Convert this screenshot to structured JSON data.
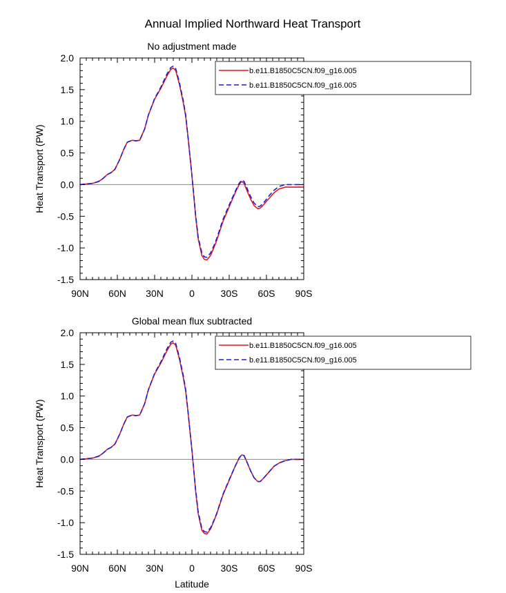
{
  "figure_title": "Annual Implied Northward Heat Transport",
  "chart_data": [
    {
      "type": "line",
      "title": "No adjustment made",
      "xlabel": "",
      "ylabel": "Heat Transport (PW)",
      "xlim": [
        -90,
        90
      ],
      "ylim": [
        -1.5,
        2.0
      ],
      "x_ticks": [
        -90,
        -60,
        -30,
        0,
        30,
        60,
        90
      ],
      "x_tick_labels": [
        "90N",
        "60N",
        "30N",
        "0",
        "30S",
        "60S",
        "90S"
      ],
      "y_ticks": [
        -1.5,
        -1.0,
        -0.5,
        0.0,
        0.5,
        1.0,
        1.5,
        2.0
      ],
      "y_tick_labels": [
        "-1.5",
        "-1.0",
        "-0.5",
        "0.0",
        "0.5",
        "1.0",
        "1.5",
        "2.0"
      ],
      "zero_line": true,
      "legend_position": "top-right",
      "series": [
        {
          "name": "b.e11.B1850C5CN.f09_g16.005",
          "color": "#e8151b",
          "style": "solid",
          "x": [
            -90,
            -80,
            -75,
            -72,
            -68,
            -65,
            -62,
            -58,
            -55,
            -52,
            -48,
            -45,
            -42,
            -38,
            -35,
            -30,
            -25,
            -20,
            -17,
            -15,
            -13,
            -10,
            -7,
            -5,
            -3,
            0,
            3,
            5,
            8,
            10,
            12,
            15,
            18,
            20,
            25,
            30,
            35,
            38,
            40,
            42,
            44,
            47,
            50,
            53,
            55,
            58,
            62,
            66,
            70,
            75,
            80,
            85,
            90
          ],
          "y": [
            0,
            0.02,
            0.05,
            0.09,
            0.16,
            0.19,
            0.24,
            0.4,
            0.55,
            0.67,
            0.7,
            0.69,
            0.7,
            0.88,
            1.1,
            1.35,
            1.52,
            1.72,
            1.82,
            1.84,
            1.8,
            1.58,
            1.3,
            1.08,
            0.72,
            0.15,
            -0.5,
            -0.85,
            -1.12,
            -1.18,
            -1.19,
            -1.12,
            -0.98,
            -0.88,
            -0.58,
            -0.35,
            -0.12,
            0,
            0.05,
            0.02,
            -0.08,
            -0.22,
            -0.33,
            -0.38,
            -0.37,
            -0.31,
            -0.22,
            -0.13,
            -0.07,
            -0.04,
            -0.04,
            -0.04,
            -0.04
          ]
        },
        {
          "name": "b.e11.B1850C5CN.f09_g16.005",
          "color": "#1a1ae0",
          "style": "dashed",
          "x": [
            -90,
            -80,
            -75,
            -72,
            -68,
            -65,
            -62,
            -58,
            -55,
            -52,
            -48,
            -45,
            -42,
            -38,
            -35,
            -30,
            -25,
            -20,
            -17,
            -15,
            -13,
            -10,
            -7,
            -5,
            -3,
            0,
            3,
            5,
            8,
            10,
            12,
            15,
            18,
            20,
            25,
            30,
            35,
            38,
            40,
            42,
            44,
            47,
            50,
            53,
            55,
            58,
            62,
            66,
            70,
            75,
            80,
            85,
            90
          ],
          "y": [
            0,
            0.02,
            0.05,
            0.09,
            0.16,
            0.19,
            0.24,
            0.4,
            0.55,
            0.67,
            0.7,
            0.69,
            0.7,
            0.88,
            1.1,
            1.36,
            1.54,
            1.75,
            1.85,
            1.87,
            1.83,
            1.61,
            1.33,
            1.1,
            0.73,
            0.15,
            -0.48,
            -0.82,
            -1.08,
            -1.14,
            -1.15,
            -1.08,
            -0.95,
            -0.85,
            -0.55,
            -0.32,
            -0.1,
            0.02,
            0.07,
            0.05,
            -0.04,
            -0.18,
            -0.29,
            -0.35,
            -0.34,
            -0.28,
            -0.18,
            -0.09,
            -0.03,
            0,
            0,
            0,
            0
          ]
        }
      ]
    },
    {
      "type": "line",
      "title": "Global mean flux subtracted",
      "xlabel": "Latitude",
      "ylabel": "Heat Transport (PW)",
      "xlim": [
        -90,
        90
      ],
      "ylim": [
        -1.5,
        2.0
      ],
      "x_ticks": [
        -90,
        -60,
        -30,
        0,
        30,
        60,
        90
      ],
      "x_tick_labels": [
        "90N",
        "60N",
        "30N",
        "0",
        "30S",
        "60S",
        "90S"
      ],
      "y_ticks": [
        -1.5,
        -1.0,
        -0.5,
        0.0,
        0.5,
        1.0,
        1.5,
        2.0
      ],
      "y_tick_labels": [
        "-1.5",
        "-1.0",
        "-0.5",
        "0.0",
        "0.5",
        "1.0",
        "1.5",
        "2.0"
      ],
      "zero_line": true,
      "legend_position": "top-right",
      "series": [
        {
          "name": "b.e11.B1850C5CN.f09_g16.005",
          "color": "#e8151b",
          "style": "solid",
          "x": [
            -90,
            -80,
            -75,
            -72,
            -68,
            -65,
            -62,
            -58,
            -55,
            -52,
            -48,
            -45,
            -42,
            -38,
            -35,
            -30,
            -25,
            -20,
            -17,
            -15,
            -13,
            -10,
            -7,
            -5,
            -3,
            0,
            3,
            5,
            8,
            10,
            12,
            15,
            18,
            20,
            25,
            30,
            35,
            38,
            40,
            42,
            44,
            47,
            50,
            53,
            55,
            58,
            62,
            66,
            70,
            75,
            80,
            85,
            90
          ],
          "y": [
            0,
            0.02,
            0.05,
            0.09,
            0.16,
            0.19,
            0.24,
            0.4,
            0.55,
            0.67,
            0.7,
            0.69,
            0.7,
            0.88,
            1.1,
            1.35,
            1.52,
            1.72,
            1.82,
            1.84,
            1.8,
            1.58,
            1.3,
            1.08,
            0.72,
            0.15,
            -0.5,
            -0.85,
            -1.12,
            -1.17,
            -1.18,
            -1.1,
            -0.96,
            -0.86,
            -0.56,
            -0.33,
            -0.1,
            0.02,
            0.07,
            0.06,
            -0.03,
            -0.17,
            -0.29,
            -0.35,
            -0.35,
            -0.29,
            -0.2,
            -0.11,
            -0.06,
            -0.02,
            0,
            0,
            0
          ]
        },
        {
          "name": "b.e11.B1850C5CN.f09_g16.005",
          "color": "#1a1ae0",
          "style": "dashed",
          "x": [
            -90,
            -80,
            -75,
            -72,
            -68,
            -65,
            -62,
            -58,
            -55,
            -52,
            -48,
            -45,
            -42,
            -38,
            -35,
            -30,
            -25,
            -20,
            -17,
            -15,
            -13,
            -10,
            -7,
            -5,
            -3,
            0,
            3,
            5,
            8,
            10,
            12,
            15,
            18,
            20,
            25,
            30,
            35,
            38,
            40,
            42,
            44,
            47,
            50,
            53,
            55,
            58,
            62,
            66,
            70,
            75,
            80,
            85,
            90
          ],
          "y": [
            0,
            0.02,
            0.05,
            0.09,
            0.16,
            0.19,
            0.24,
            0.4,
            0.55,
            0.67,
            0.7,
            0.69,
            0.7,
            0.88,
            1.1,
            1.36,
            1.54,
            1.75,
            1.85,
            1.87,
            1.83,
            1.61,
            1.33,
            1.1,
            0.73,
            0.15,
            -0.48,
            -0.82,
            -1.09,
            -1.14,
            -1.15,
            -1.08,
            -0.95,
            -0.85,
            -0.55,
            -0.32,
            -0.1,
            0.02,
            0.07,
            0.06,
            -0.03,
            -0.17,
            -0.29,
            -0.35,
            -0.35,
            -0.29,
            -0.2,
            -0.11,
            -0.06,
            -0.02,
            0,
            0,
            0
          ]
        }
      ]
    }
  ]
}
